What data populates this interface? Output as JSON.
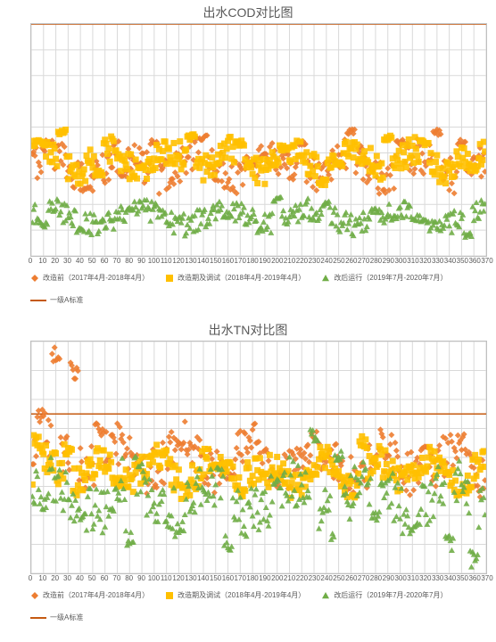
{
  "charts": [
    {
      "id": "cod",
      "title": "出水COD对比图",
      "title_fontsize": 14,
      "background_color": "#ffffff",
      "grid_color": "#d9d9d9",
      "border_color": "#bfbfbf",
      "text_color": "#595959",
      "xlim": [
        0,
        370
      ],
      "xtick_step": 10,
      "ylim": [
        5.0,
        50.0
      ],
      "ytick_step": 5.0,
      "y_decimals": 2,
      "label_fontsize": 9,
      "marker_size": 3.5,
      "standard": {
        "name": "一级A标准",
        "value": 50.0,
        "color": "#c55a11"
      },
      "series": [
        {
          "name": "改造前（2017年4月-2018年4月）",
          "color": "#ed7d31",
          "shape": "diamond",
          "mean": 22.5,
          "sd": 3.5,
          "trend": 0.0,
          "wave_amp": 2.0,
          "wave_period": 60,
          "spikes": [
            [
              15,
              27
            ],
            [
              45,
              18
            ],
            [
              75,
              21
            ],
            [
              100,
              27
            ],
            [
              140,
              28
            ],
            [
              180,
              23
            ],
            [
              220,
              27
            ],
            [
              260,
              29
            ],
            [
              300,
              27
            ],
            [
              330,
              29
            ],
            [
              350,
              27
            ]
          ]
        },
        {
          "name": "改造期及调试（2018年4月-2019年4月）",
          "color": "#ffc000",
          "shape": "square",
          "mean": 23.5,
          "sd": 2.8,
          "trend": 0.0,
          "wave_amp": 2.0,
          "wave_period": 50,
          "spikes": [
            [
              5,
              27
            ],
            [
              25,
              29
            ],
            [
              55,
              21
            ],
            [
              90,
              22
            ],
            [
              130,
              28
            ],
            [
              170,
              27
            ],
            [
              205,
              26
            ],
            [
              250,
              23
            ],
            [
              290,
              28
            ],
            [
              320,
              27
            ],
            [
              360,
              22
            ]
          ]
        },
        {
          "name": "改后运行（2019年7月-2020年7月）",
          "color": "#70ad47",
          "shape": "triangle",
          "mean": 12.5,
          "sd": 2.2,
          "trend": 0.0,
          "wave_amp": 1.5,
          "wave_period": 70,
          "spikes": [
            [
              10,
              11
            ],
            [
              40,
              10
            ],
            [
              80,
              14
            ],
            [
              120,
              12
            ],
            [
              160,
              13
            ],
            [
              200,
              16
            ],
            [
              240,
              15
            ],
            [
              280,
              14
            ],
            [
              320,
              12
            ],
            [
              355,
              9
            ]
          ]
        }
      ]
    },
    {
      "id": "tn",
      "title": "出水TN对比图",
      "title_fontsize": 14,
      "background_color": "#ffffff",
      "grid_color": "#d9d9d9",
      "border_color": "#bfbfbf",
      "text_color": "#595959",
      "xlim": [
        0,
        370
      ],
      "xtick_step": 10,
      "ylim": [
        4.0,
        20.0
      ],
      "ytick_step": 2.0,
      "y_decimals": 2,
      "label_fontsize": 9,
      "marker_size": 3.5,
      "standard": {
        "name": "一级A标准",
        "value": 15.0,
        "color": "#c55a11"
      },
      "series": [
        {
          "name": "改造前（2017年4月-2018年4月）",
          "color": "#ed7d31",
          "shape": "diamond",
          "mean": 12.2,
          "sd": 1.6,
          "trend": -0.002,
          "wave_amp": 1.0,
          "wave_period": 55,
          "spikes": [
            [
              8,
              15
            ],
            [
              20,
              19
            ],
            [
              35,
              18
            ],
            [
              55,
              14
            ],
            [
              90,
              11.5
            ],
            [
              120,
              13
            ],
            [
              160,
              11
            ],
            [
              200,
              10.5
            ],
            [
              240,
              12
            ],
            [
              280,
              12
            ],
            [
              320,
              13
            ],
            [
              350,
              13
            ]
          ]
        },
        {
          "name": "改造期及调试（2018年4月-2019年4月）",
          "color": "#ffc000",
          "shape": "square",
          "mean": 11.0,
          "sd": 1.1,
          "trend": 0.0,
          "wave_amp": 0.8,
          "wave_period": 45,
          "spikes": [
            [
              5,
              13
            ],
            [
              30,
              12.5
            ],
            [
              70,
              10.5
            ],
            [
              110,
              12
            ],
            [
              150,
              11
            ],
            [
              190,
              10.5
            ],
            [
              230,
              11
            ],
            [
              270,
              13
            ],
            [
              310,
              11
            ],
            [
              350,
              10
            ]
          ]
        },
        {
          "name": "改后运行（2019年7月-2020年7月）",
          "color": "#70ad47",
          "shape": "triangle",
          "mean": 9.3,
          "sd": 1.8,
          "trend": 0.0,
          "wave_amp": 1.2,
          "wave_period": 65,
          "spikes": [
            [
              10,
              9
            ],
            [
              40,
              8
            ],
            [
              80,
              6.5
            ],
            [
              120,
              7
            ],
            [
              160,
              6
            ],
            [
              200,
              10
            ],
            [
              230,
              13.5
            ],
            [
              250,
              12
            ],
            [
              280,
              8
            ],
            [
              310,
              7
            ],
            [
              340,
              6
            ],
            [
              360,
              5
            ]
          ]
        }
      ]
    }
  ]
}
